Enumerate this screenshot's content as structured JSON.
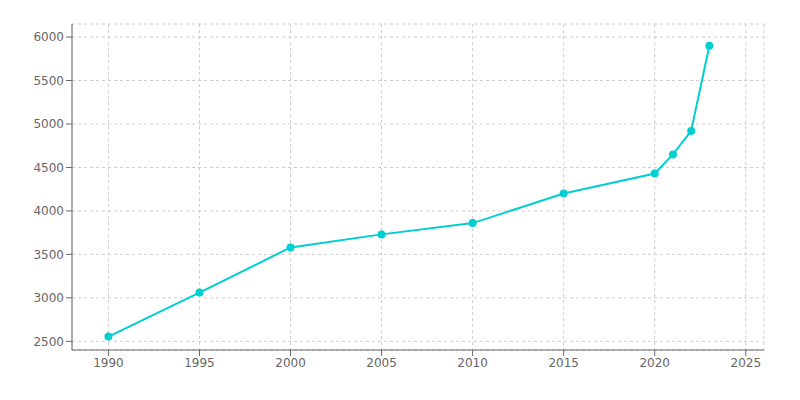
{
  "chart_data": {
    "type": "line",
    "x": [
      1990,
      1995,
      2000,
      2005,
      2010,
      2015,
      2020,
      2021,
      2022,
      2023
    ],
    "values": [
      2554,
      3060,
      3580,
      3730,
      3860,
      4200,
      4430,
      4650,
      4920,
      5900
    ],
    "color": "#00CED1",
    "marker": "circle",
    "xlim": [
      1988,
      2026
    ],
    "ylim": [
      2400,
      6150
    ],
    "xticks": [
      1990,
      1995,
      2000,
      2005,
      2010,
      2015,
      2020,
      2025
    ],
    "yticks": [
      2500,
      3000,
      3500,
      4000,
      4500,
      5000,
      5500,
      6000
    ],
    "grid": true
  }
}
